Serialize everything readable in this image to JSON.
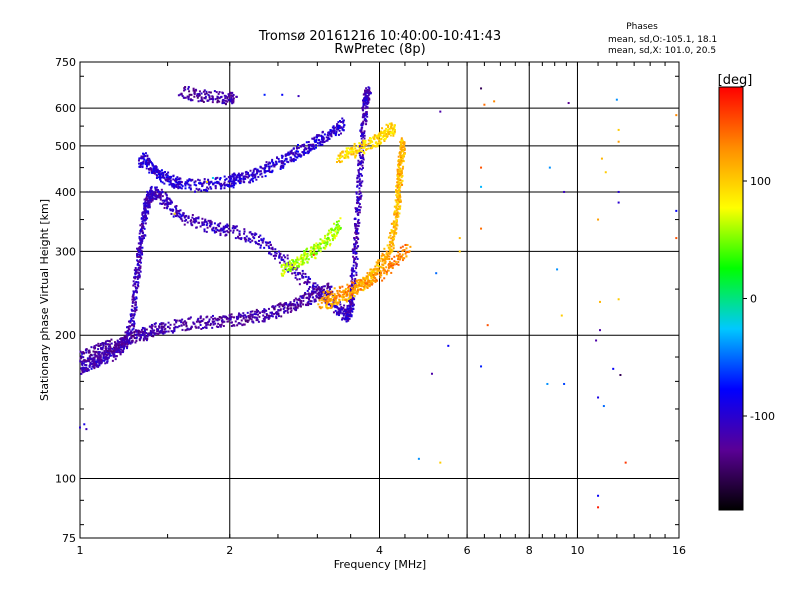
{
  "chart_data": {
    "type": "scatter",
    "title": "Tromsø 20161216 10:40:00-10:41:43",
    "subtitle": "RwPretec (8p)",
    "xlabel": "Frequency [MHz]",
    "ylabel": "Stationary phase Virtual Height [km]",
    "x_scale": "log",
    "y_scale": "log",
    "xlim": [
      1,
      16
    ],
    "ylim": [
      75,
      750
    ],
    "x_ticks": [
      "1",
      "2",
      "4",
      "6",
      "8",
      "10",
      "16"
    ],
    "y_ticks": [
      "75",
      "100",
      "200",
      "300",
      "400",
      "500",
      "600",
      "750"
    ],
    "grid": true,
    "stats": {
      "heading": "Phases",
      "line_o": "mean, sd,O:-105.1, 18.1",
      "line_x": "mean, sd,X: 101.0, 20.5"
    },
    "colorbar": {
      "label": "[deg]",
      "ticks": [
        "100",
        "0",
        "-100"
      ],
      "range": [
        -180,
        180
      ],
      "tick_values": [
        100,
        0,
        -100
      ]
    },
    "color_stops": [
      "#000000",
      "#5a0096",
      "#0000ff",
      "#00c8ff",
      "#00ff00",
      "#ffff00",
      "#ff8c00",
      "#ff0000"
    ],
    "traces": [
      {
        "x": [
          1.0,
          1.02,
          1.05,
          1.08,
          1.1,
          1.13,
          1.16,
          1.19,
          1.21,
          1.24,
          1.26,
          1.28,
          1.29,
          1.3,
          1.31,
          1.32,
          1.33,
          1.34,
          1.35,
          1.36,
          1.37,
          1.39,
          1.41,
          1.44,
          1.48,
          1.53,
          1.6,
          1.7,
          1.8,
          1.9,
          2.0,
          2.15,
          2.3,
          2.45,
          2.6,
          2.75,
          2.9,
          3.05,
          3.2,
          3.3,
          3.4,
          3.45,
          3.48,
          3.5,
          3.52,
          3.54,
          3.56,
          3.58,
          3.6,
          3.62,
          3.64,
          3.66,
          3.68,
          3.7,
          3.72,
          3.74,
          3.76,
          3.78,
          3.8
        ],
        "y": [
          170,
          172,
          174,
          176,
          178,
          180,
          183,
          186,
          190,
          195,
          205,
          220,
          240,
          260,
          280,
          300,
          320,
          340,
          360,
          375,
          385,
          395,
          400,
          395,
          385,
          370,
          355,
          345,
          340,
          336,
          332,
          325,
          315,
          300,
          285,
          268,
          255,
          245,
          235,
          228,
          222,
          220,
          224,
          230,
          240,
          255,
          275,
          300,
          330,
          365,
          400,
          440,
          480,
          520,
          560,
          600,
          630,
          640,
          645
        ],
        "phase": -110
      },
      {
        "x": [
          1.0,
          1.04,
          1.08,
          1.12,
          1.16,
          1.2,
          1.24,
          1.28,
          1.32,
          1.36,
          1.4,
          1.45,
          1.5,
          1.6,
          1.7,
          1.8,
          1.9,
          2.0,
          2.1,
          2.2,
          2.3,
          2.4,
          2.5,
          2.6,
          2.7,
          2.8,
          2.9,
          3.0,
          3.1,
          3.2
        ],
        "y": [
          180,
          182,
          185,
          188,
          190,
          192,
          196,
          198,
          200,
          202,
          205,
          207,
          208,
          210,
          212,
          213,
          214,
          215,
          216,
          218,
          220,
          222,
          225,
          228,
          232,
          236,
          240,
          244,
          248,
          252
        ],
        "phase": -120
      },
      {
        "x": [
          1.32,
          1.35,
          1.38,
          1.42,
          1.46,
          1.5,
          1.55,
          1.6,
          1.7,
          1.8,
          1.9,
          2.0,
          2.05,
          2.1,
          2.2,
          2.3,
          2.4,
          2.5,
          2.6,
          2.7,
          2.8,
          2.9,
          3.0,
          3.1,
          3.2,
          3.3,
          3.4
        ],
        "y": [
          460,
          470,
          455,
          445,
          435,
          425,
          420,
          415,
          412,
          414,
          416,
          420,
          425,
          428,
          430,
          440,
          450,
          460,
          470,
          480,
          490,
          500,
          510,
          520,
          530,
          545,
          560
        ],
        "phase": -100
      },
      {
        "x": [
          1.6,
          1.7,
          1.8,
          1.9,
          2.0,
          2.05
        ],
        "y": [
          650,
          640,
          635,
          632,
          630,
          628
        ],
        "phase": -120
      },
      {
        "x": [
          3.05,
          3.2,
          3.35,
          3.5,
          3.6,
          3.7,
          3.8,
          3.9,
          4.0,
          4.1,
          4.2,
          4.25,
          4.3,
          4.33,
          4.35,
          4.37,
          4.39,
          4.4,
          4.42,
          4.44,
          4.45,
          4.47
        ],
        "y": [
          232,
          236,
          240,
          245,
          250,
          256,
          262,
          270,
          280,
          292,
          305,
          320,
          340,
          360,
          380,
          400,
          420,
          440,
          460,
          480,
          500,
          510
        ],
        "phase": 110
      },
      {
        "x": [
          3.3,
          3.45,
          3.6,
          3.75,
          3.9,
          4.0,
          4.1,
          4.2,
          4.3
        ],
        "y": [
          470,
          480,
          490,
          500,
          510,
          520,
          530,
          540,
          545
        ],
        "phase": 95
      },
      {
        "x": [
          2.55,
          2.65,
          2.75,
          2.85,
          2.95,
          3.05,
          3.15,
          3.25,
          3.35
        ],
        "y": [
          272,
          278,
          285,
          293,
          300,
          308,
          318,
          330,
          345
        ],
        "phase": 60
      },
      {
        "x": [
          3.1,
          3.3,
          3.5,
          3.8,
          4.0,
          4.2,
          4.4,
          4.6
        ],
        "y": [
          240,
          245,
          250,
          258,
          266,
          278,
          292,
          310
        ],
        "phase": 130
      }
    ],
    "sparse_points": [
      {
        "x": 5.3,
        "y": 590,
        "phase": -120
      },
      {
        "x": 6.4,
        "y": 660,
        "phase": -150
      },
      {
        "x": 6.5,
        "y": 610,
        "phase": 140
      },
      {
        "x": 6.8,
        "y": 620,
        "phase": 130
      },
      {
        "x": 6.4,
        "y": 450,
        "phase": 150
      },
      {
        "x": 6.4,
        "y": 410,
        "phase": -30
      },
      {
        "x": 6.4,
        "y": 335,
        "phase": 140
      },
      {
        "x": 6.6,
        "y": 210,
        "phase": 150
      },
      {
        "x": 6.4,
        "y": 172,
        "phase": -70
      },
      {
        "x": 5.2,
        "y": 270,
        "phase": -50
      },
      {
        "x": 5.1,
        "y": 166,
        "phase": -120
      },
      {
        "x": 5.5,
        "y": 190,
        "phase": -80
      },
      {
        "x": 5.8,
        "y": 320,
        "phase": 110
      },
      {
        "x": 5.8,
        "y": 300,
        "phase": 100
      },
      {
        "x": 5.3,
        "y": 108,
        "phase": 100
      },
      {
        "x": 4.8,
        "y": 110,
        "phase": -40
      },
      {
        "x": 8.8,
        "y": 450,
        "phase": -40
      },
      {
        "x": 9.4,
        "y": 400,
        "phase": -110
      },
      {
        "x": 9.6,
        "y": 615,
        "phase": -130
      },
      {
        "x": 9.1,
        "y": 275,
        "phase": -40
      },
      {
        "x": 9.3,
        "y": 220,
        "phase": 100
      },
      {
        "x": 8.7,
        "y": 158,
        "phase": -40
      },
      {
        "x": 9.4,
        "y": 158,
        "phase": -60
      },
      {
        "x": 11.2,
        "y": 470,
        "phase": 110
      },
      {
        "x": 11.4,
        "y": 440,
        "phase": 100
      },
      {
        "x": 11.0,
        "y": 350,
        "phase": 120
      },
      {
        "x": 11.1,
        "y": 235,
        "phase": 110
      },
      {
        "x": 11.1,
        "y": 205,
        "phase": -120
      },
      {
        "x": 11.0,
        "y": 148,
        "phase": -90
      },
      {
        "x": 11.3,
        "y": 142,
        "phase": -50
      },
      {
        "x": 12.1,
        "y": 400,
        "phase": -100
      },
      {
        "x": 12.1,
        "y": 380,
        "phase": -100
      },
      {
        "x": 12.1,
        "y": 540,
        "phase": 100
      },
      {
        "x": 12.1,
        "y": 510,
        "phase": 120
      },
      {
        "x": 12.0,
        "y": 625,
        "phase": -40
      },
      {
        "x": 11.8,
        "y": 170,
        "phase": -80
      },
      {
        "x": 12.2,
        "y": 165,
        "phase": -150
      },
      {
        "x": 12.5,
        "y": 108,
        "phase": 160
      },
      {
        "x": 12.1,
        "y": 238,
        "phase": 100
      },
      {
        "x": 11.0,
        "y": 92,
        "phase": -80
      },
      {
        "x": 11.0,
        "y": 87,
        "phase": 170
      },
      {
        "x": 15.8,
        "y": 580,
        "phase": 130
      },
      {
        "x": 15.8,
        "y": 365,
        "phase": -80
      },
      {
        "x": 15.8,
        "y": 320,
        "phase": 150
      },
      {
        "x": 10.9,
        "y": 195,
        "phase": -120
      },
      {
        "x": 1.0,
        "y": 128,
        "phase": -100
      },
      {
        "x": 1.03,
        "y": 127,
        "phase": -110
      },
      {
        "x": 1.02,
        "y": 130,
        "phase": -90
      },
      {
        "x": 1.55,
        "y": 360,
        "phase": 90
      },
      {
        "x": 2.55,
        "y": 640,
        "phase": -80
      },
      {
        "x": 2.75,
        "y": 636,
        "phase": -110
      },
      {
        "x": 2.35,
        "y": 640,
        "phase": -70
      },
      {
        "x": 2.95,
        "y": 295,
        "phase": 160
      },
      {
        "x": 1.85,
        "y": 428,
        "phase": -20
      },
      {
        "x": 1.8,
        "y": 420,
        "phase": 90
      }
    ]
  }
}
